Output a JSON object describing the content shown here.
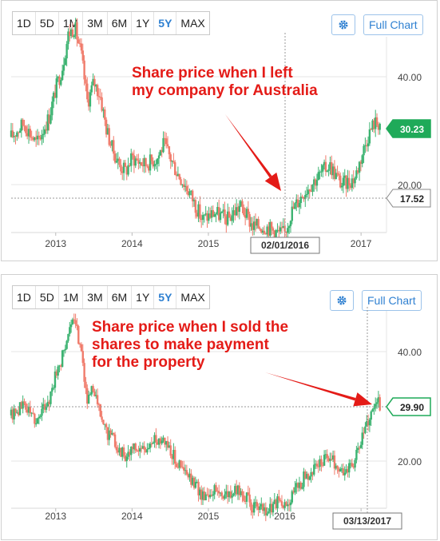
{
  "toolbar": {
    "ranges": [
      "1D",
      "5D",
      "1M",
      "3M",
      "6M",
      "1Y",
      "5Y",
      "MAX"
    ],
    "active_range": "5Y",
    "settings_icon": "gear-icon",
    "full_chart_label": "Full Chart",
    "accent_color": "#2f80d1"
  },
  "colors": {
    "up": "#3cb371",
    "down": "#f07b6b",
    "current_tag": "#1faa59",
    "annotation": "#e41b17"
  },
  "chart_data": [
    {
      "type": "candlestick",
      "xlabel": "",
      "ylabel": "",
      "x_ticks": [
        "2013",
        "2014",
        "2015",
        "2016",
        "2017"
      ],
      "y_ticks": [
        "20.00",
        "40.00"
      ],
      "xlim": [
        "2012-06",
        "2017-05"
      ],
      "ylim": [
        10,
        48
      ],
      "grid": true,
      "price_path": [
        [
          "2012-06",
          28
        ],
        [
          "2012-08",
          30
        ],
        [
          "2012-10",
          27
        ],
        [
          "2012-12",
          31
        ],
        [
          "2013-01",
          35
        ],
        [
          "2013-02",
          38
        ],
        [
          "2013-03",
          43
        ],
        [
          "2013-04",
          44
        ],
        [
          "2013-05",
          40
        ],
        [
          "2013-06",
          33
        ],
        [
          "2013-07",
          36
        ],
        [
          "2013-08",
          34
        ],
        [
          "2013-09",
          29
        ],
        [
          "2013-10",
          26
        ],
        [
          "2013-11",
          24
        ],
        [
          "2013-12",
          23
        ],
        [
          "2014-01",
          25
        ],
        [
          "2014-03",
          24
        ],
        [
          "2014-05",
          25
        ],
        [
          "2014-06",
          27
        ],
        [
          "2014-08",
          23
        ],
        [
          "2014-10",
          20
        ],
        [
          "2014-12",
          16
        ],
        [
          "2015-02",
          17
        ],
        [
          "2015-04",
          16
        ],
        [
          "2015-06",
          18
        ],
        [
          "2015-08",
          15
        ],
        [
          "2015-10",
          15
        ],
        [
          "2015-12",
          14
        ],
        [
          "2016-01",
          14
        ],
        [
          "2016-02",
          17
        ],
        [
          "2016-04",
          20
        ],
        [
          "2016-06",
          22
        ],
        [
          "2016-08",
          24
        ],
        [
          "2016-10",
          21
        ],
        [
          "2016-12",
          22
        ],
        [
          "2017-02",
          28
        ],
        [
          "2017-03",
          30
        ],
        [
          "2017-04",
          30
        ]
      ],
      "current_value": "30.23",
      "reference_value": "17.52",
      "crosshair_date": "02/01/2016",
      "annotation": "Share price when I left\nmy company for Australia"
    },
    {
      "type": "candlestick",
      "xlabel": "",
      "ylabel": "",
      "x_ticks": [
        "2013",
        "2014",
        "2015",
        "2016",
        "2017"
      ],
      "y_ticks": [
        "20.00",
        "40.00"
      ],
      "xlim": [
        "2012-06",
        "2017-05"
      ],
      "ylim": [
        5,
        48
      ],
      "grid": true,
      "price_path": [
        [
          "2012-06",
          28
        ],
        [
          "2012-08",
          30
        ],
        [
          "2012-10",
          27
        ],
        [
          "2012-12",
          31
        ],
        [
          "2013-01",
          35
        ],
        [
          "2013-02",
          38
        ],
        [
          "2013-03",
          43
        ],
        [
          "2013-04",
          44
        ],
        [
          "2013-05",
          40
        ],
        [
          "2013-06",
          30
        ],
        [
          "2013-07",
          33
        ],
        [
          "2013-08",
          28
        ],
        [
          "2013-09",
          25
        ],
        [
          "2013-10",
          24
        ],
        [
          "2013-11",
          22
        ],
        [
          "2013-12",
          21
        ],
        [
          "2014-01",
          22
        ],
        [
          "2014-03",
          22
        ],
        [
          "2014-05",
          24
        ],
        [
          "2014-06",
          24
        ],
        [
          "2014-08",
          20
        ],
        [
          "2014-10",
          17
        ],
        [
          "2014-12",
          14
        ],
        [
          "2015-02",
          15
        ],
        [
          "2015-04",
          14
        ],
        [
          "2015-06",
          15
        ],
        [
          "2015-08",
          12
        ],
        [
          "2015-10",
          11
        ],
        [
          "2015-12",
          13
        ],
        [
          "2016-01",
          12
        ],
        [
          "2016-02",
          14
        ],
        [
          "2016-04",
          17
        ],
        [
          "2016-06",
          19
        ],
        [
          "2016-08",
          21
        ],
        [
          "2016-10",
          18
        ],
        [
          "2016-12",
          20
        ],
        [
          "2017-02",
          27
        ],
        [
          "2017-03",
          30
        ],
        [
          "2017-04",
          30
        ]
      ],
      "current_value": "29.90",
      "crosshair_date": "03/13/2017",
      "annotation": "Share price when I sold the\nshares to make payment\nfor the property"
    }
  ]
}
